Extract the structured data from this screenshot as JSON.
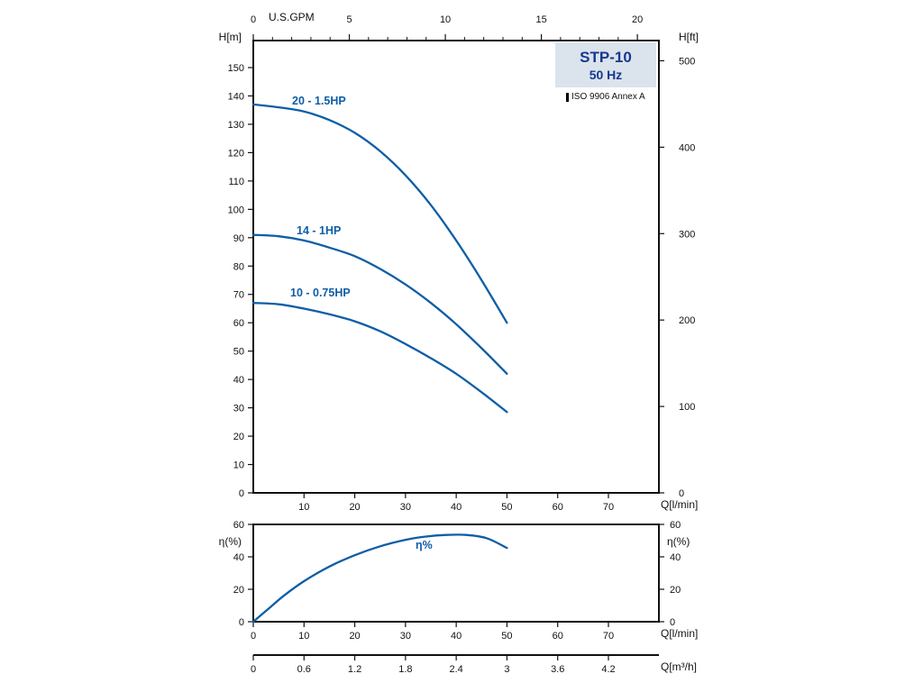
{
  "title_box": {
    "model": "STP-10",
    "frequency": "50 Hz",
    "standard": "ISO 9906 Annex A"
  },
  "axis_labels": {
    "h_m": "H[m]",
    "h_ft": "H[ft]",
    "us_gpm": "U.S.GPM",
    "q_lmin": "Q[l/min]",
    "eta_pct": "η(%)",
    "q_m3h": "Q[m³/h]"
  },
  "colors": {
    "curve": "#0d5ea6",
    "curve_label": "#0d5ea6",
    "title_text": "#17388f",
    "title_box_bg": "#dbe3ec",
    "axis": "#111111"
  },
  "chart_data": [
    {
      "type": "line",
      "title": "STP-10 50 Hz pump performance curves",
      "xlabel": "Q[l/min]",
      "ylabel": "H[m]",
      "x2label": "U.S.GPM",
      "y2label": "H[ft]",
      "xlim": [
        0,
        80
      ],
      "ylim": [
        0,
        159.5
      ],
      "x_ticks": [
        10,
        20,
        30,
        40,
        50,
        60,
        70
      ],
      "x2_ticks": [
        0,
        5,
        10,
        15,
        20
      ],
      "y_ticks": [
        0,
        10,
        20,
        30,
        40,
        50,
        60,
        70,
        80,
        90,
        100,
        110,
        120,
        130,
        140,
        150
      ],
      "y2_ticks": [
        0,
        100,
        200,
        300,
        400,
        500
      ],
      "grid": false,
      "legend_position": "inline-labels",
      "series": [
        {
          "name": "20 - 1.5HP",
          "x": [
            0,
            5,
            10,
            15,
            20,
            25,
            30,
            35,
            40,
            45,
            50
          ],
          "y": [
            137,
            136,
            134.5,
            131.5,
            127,
            120.5,
            112,
            101.5,
            89,
            75,
            60
          ]
        },
        {
          "name": "14 - 1HP",
          "x": [
            0,
            5,
            10,
            15,
            20,
            25,
            30,
            35,
            40,
            45,
            50
          ],
          "y": [
            91,
            90.5,
            89,
            86.5,
            83.5,
            79,
            73.5,
            67,
            59.5,
            51,
            42
          ]
        },
        {
          "name": "10 - 0.75HP",
          "x": [
            0,
            5,
            10,
            15,
            20,
            25,
            30,
            35,
            40,
            45,
            50
          ],
          "y": [
            67,
            66.5,
            65,
            63,
            60.5,
            57,
            52.5,
            47.5,
            42,
            35.5,
            28.5
          ]
        }
      ]
    },
    {
      "type": "line",
      "title": "Efficiency curve",
      "xlabel": "Q[l/min]",
      "ylabel": "η(%)",
      "x3label": "Q[m³/h]",
      "xlim": [
        0,
        80
      ],
      "ylim": [
        0,
        60
      ],
      "x_ticks": [
        0,
        10,
        20,
        30,
        40,
        50,
        60,
        70
      ],
      "x3_ticks": [
        0,
        0.6,
        1.2,
        1.8,
        2.4,
        3,
        3.6,
        4.2
      ],
      "y_ticks": [
        0,
        20,
        40,
        60
      ],
      "grid": false,
      "series": [
        {
          "name": "η%",
          "x": [
            0,
            3,
            6,
            10,
            15,
            20,
            25,
            30,
            34,
            38,
            42,
            46,
            50
          ],
          "y": [
            0,
            8,
            16,
            25,
            34,
            41,
            46.5,
            50.5,
            52.5,
            53.5,
            53.5,
            51.5,
            45.5
          ]
        }
      ]
    }
  ]
}
